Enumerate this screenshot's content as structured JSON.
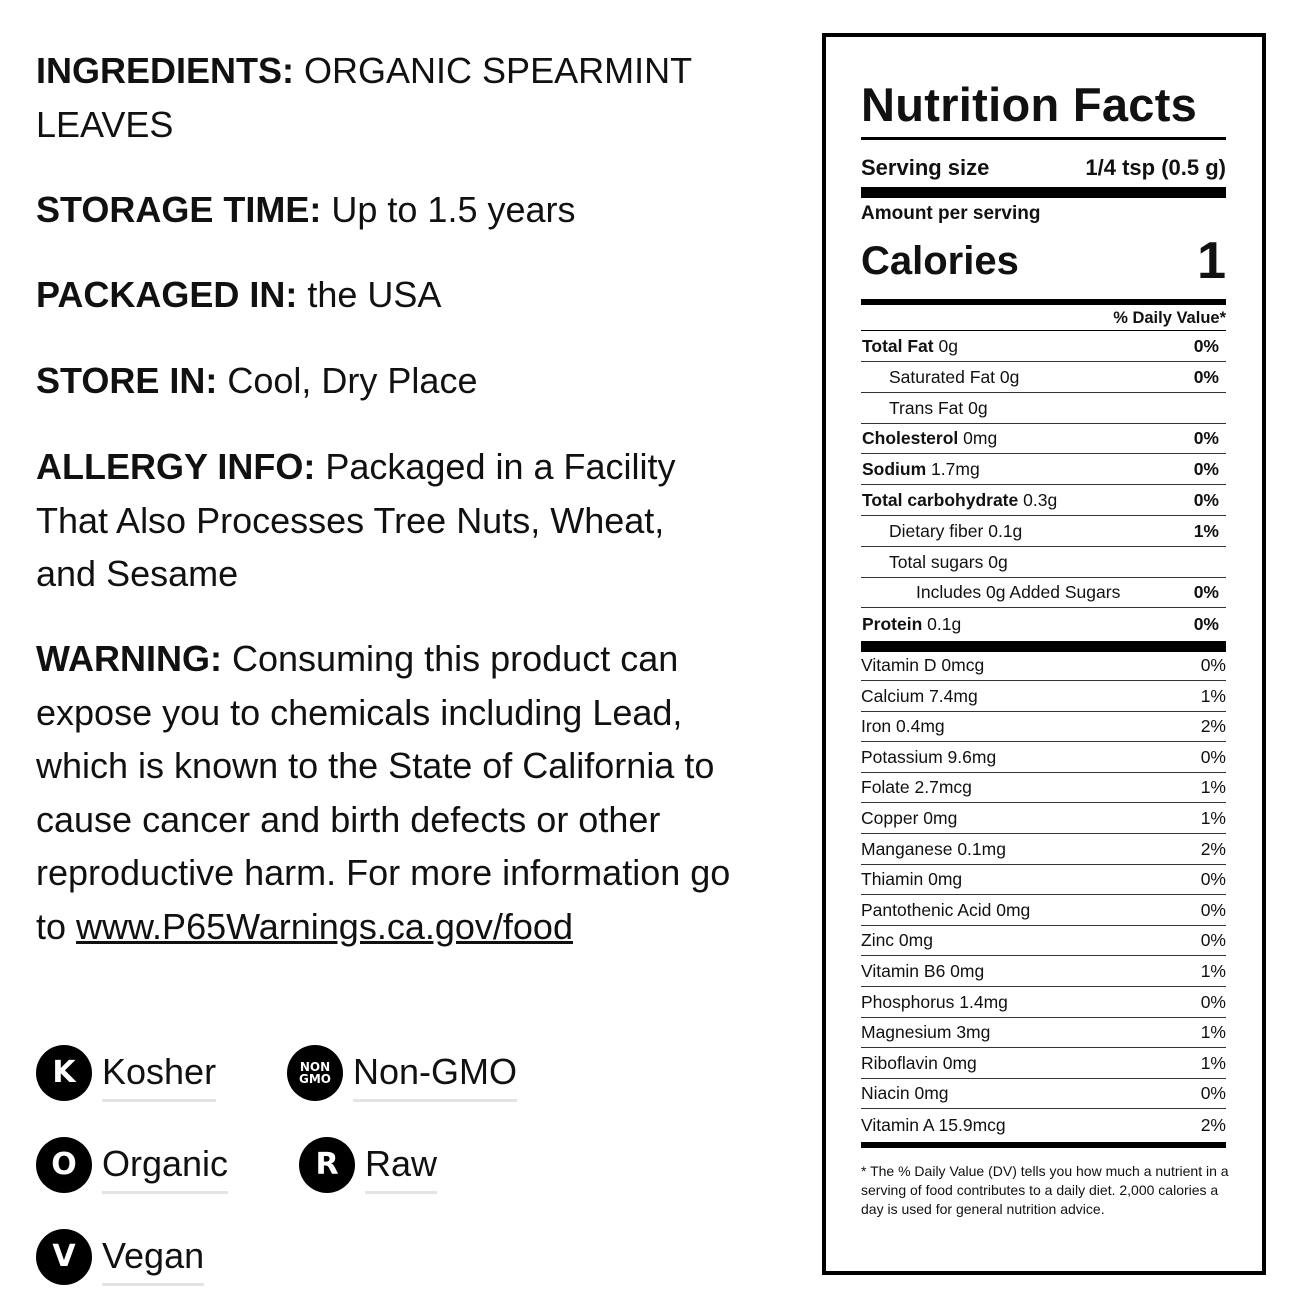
{
  "info": {
    "ingredients": {
      "label": "INGREDIENTS:",
      "value": "ORGANIC SPEARMINT LEAVES"
    },
    "storage_time": {
      "label": "STORAGE TIME:",
      "value": "Up to 1.5 years"
    },
    "packaged_in": {
      "label": "PACKAGED IN:",
      "value": "the USA"
    },
    "store_in": {
      "label": "STORE IN:",
      "value": "Cool, Dry Place"
    },
    "allergy": {
      "label": "ALLERGY INFO:",
      "value": "Packaged in a Facility That Also Processes Tree Nuts, Wheat, and Sesame"
    },
    "warning": {
      "label": "WARNING:",
      "value": "Consuming this product can expose you to chemicals including Lead, which is known to the State of California to cause cancer and birth defects or other reproductive harm. For more information go to",
      "link": "www.P65Warnings.ca.gov/food"
    }
  },
  "badges": [
    {
      "icon": "kosher-icon",
      "glyph": "K",
      "label": "Kosher"
    },
    {
      "icon": "non-gmo-icon",
      "glyph": "NON GMO",
      "label": "Non-GMO"
    },
    {
      "icon": "organic-icon",
      "glyph": "O",
      "label": "Organic"
    },
    {
      "icon": "raw-icon",
      "glyph": "R",
      "label": "Raw"
    },
    {
      "icon": "vegan-icon",
      "glyph": "V",
      "label": "Vegan"
    }
  ],
  "nutrition": {
    "title": "Nutrition Facts",
    "serving_size_label": "Serving size",
    "serving_size_value": "1/4 tsp (0.5 g)",
    "amount_per_serving": "Amount per serving",
    "calories_label": "Calories",
    "calories_value": "1",
    "daily_value_header": "% Daily Value*",
    "nutrients": [
      {
        "name": "Total Fat",
        "amount": "0g",
        "dv": "0%",
        "bold": true,
        "indent": 0
      },
      {
        "name": "Saturated Fat",
        "amount": "0g",
        "dv": "0%",
        "bold": false,
        "indent": 1
      },
      {
        "name": "Trans Fat",
        "amount": "0g",
        "dv": "",
        "bold": false,
        "indent": 1
      },
      {
        "name": "Cholesterol",
        "amount": "0mg",
        "dv": "0%",
        "bold": true,
        "indent": 0
      },
      {
        "name": "Sodium",
        "amount": "1.7mg",
        "dv": "0%",
        "bold": true,
        "indent": 0
      },
      {
        "name": "Total carbohydrate",
        "amount": "0.3g",
        "dv": "0%",
        "bold": true,
        "indent": 0
      },
      {
        "name": "Dietary fiber",
        "amount": "0.1g",
        "dv": "1%",
        "bold": false,
        "indent": 1
      },
      {
        "name": "Total sugars",
        "amount": "0g",
        "dv": "",
        "bold": false,
        "indent": 1
      },
      {
        "name": "Includes 0g Added Sugars",
        "amount": "",
        "dv": "0%",
        "bold": false,
        "indent": 2
      },
      {
        "name": "Protein",
        "amount": "0.1g",
        "dv": "0%",
        "bold": true,
        "indent": 0
      }
    ],
    "vitamins": [
      {
        "name": "Vitamin D 0mcg",
        "dv": "0%"
      },
      {
        "name": "Calcium 7.4mg",
        "dv": "1%"
      },
      {
        "name": "Iron 0.4mg",
        "dv": "2%"
      },
      {
        "name": "Potassium 9.6mg",
        "dv": "0%"
      },
      {
        "name": "Folate 2.7mcg",
        "dv": "1%"
      },
      {
        "name": "Copper 0mg",
        "dv": "1%"
      },
      {
        "name": "Manganese 0.1mg",
        "dv": "2%"
      },
      {
        "name": "Thiamin 0mg",
        "dv": "0%"
      },
      {
        "name": "Pantothenic Acid 0mg",
        "dv": "0%"
      },
      {
        "name": "Zinc 0mg",
        "dv": "0%"
      },
      {
        "name": "Vitamin B6 0mg",
        "dv": "1%"
      },
      {
        "name": "Phosphorus 1.4mg",
        "dv": "0%"
      },
      {
        "name": "Magnesium 3mg",
        "dv": "1%"
      },
      {
        "name": "Riboflavin 0mg",
        "dv": "1%"
      },
      {
        "name": "Niacin 0mg",
        "dv": "0%"
      },
      {
        "name": "Vitamin A 15.9mcg",
        "dv": "2%"
      }
    ],
    "footnote": "* The % Daily Value (DV) tells you how much a nutrient in a serving of food contributes to a daily diet. 2,000 calories a day is used for general nutrition advice."
  }
}
